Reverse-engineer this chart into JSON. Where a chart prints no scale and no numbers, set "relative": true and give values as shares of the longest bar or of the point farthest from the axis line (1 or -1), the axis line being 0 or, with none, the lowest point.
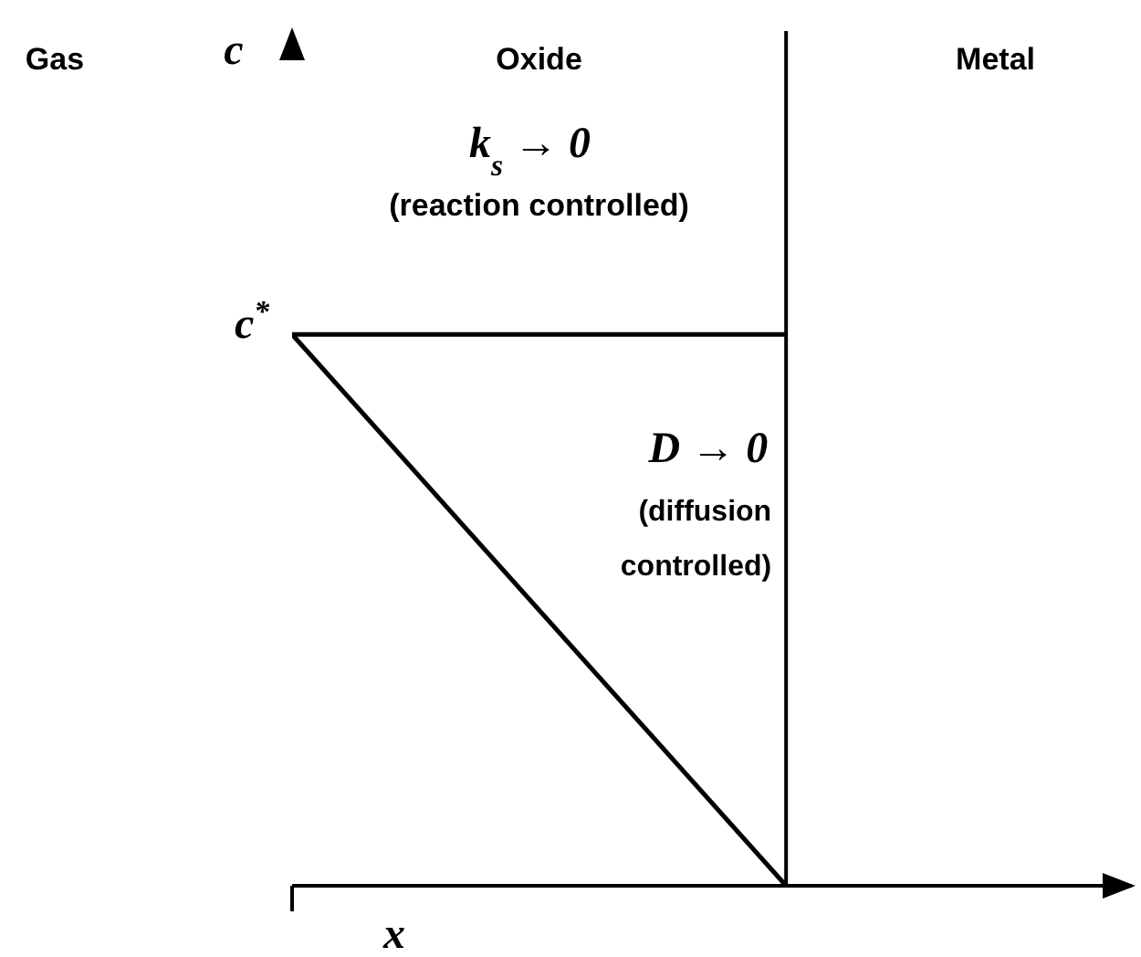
{
  "chart_data": {
    "type": "line",
    "relative": true,
    "xlabel": "x",
    "categories": [
      null,
      null
    ],
    "series": [
      {
        "color": "#000000",
        "values": [
          1,
          1
        ]
      },
      {
        "color": "#000000",
        "values": [
          1,
          0
        ]
      }
    ],
    "annotations": [
      "Gas",
      "Oxide",
      "Metal",
      "k$_{s}$ → 0",
      "(reaction controlled)",
      "D → 0",
      "(diffusion controlled)",
      "c$^{*}$",
      "c"
    ],
    "grid": false,
    "marker": "none",
    "line_style": "solid"
  }
}
